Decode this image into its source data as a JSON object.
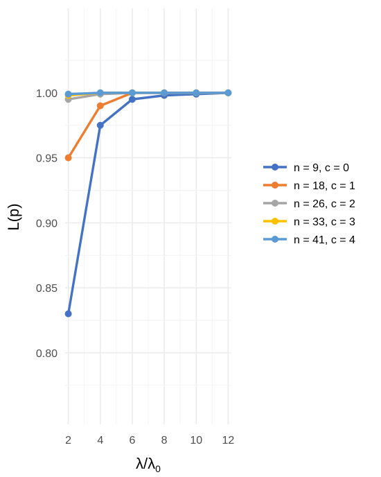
{
  "chart_data": {
    "type": "line",
    "xlabel": "λ/λ",
    "xlabel_sub": "0",
    "ylabel": "L(p)",
    "x": [
      2,
      4,
      6,
      8,
      10,
      12
    ],
    "xlim": [
      1.8,
      12.2
    ],
    "ylim": [
      0.745,
      1.065
    ],
    "xticks": [
      2,
      4,
      6,
      8,
      10,
      12
    ],
    "yticks": [
      0.8,
      0.85,
      0.9,
      0.95,
      1.0
    ],
    "ytick_labels": [
      "0.80",
      "0.85",
      "0.90",
      "0.95",
      "1.00"
    ],
    "grid": true,
    "legend_position": "right",
    "series": [
      {
        "name": "n = 9, c = 0",
        "color": "#4472C4",
        "values": [
          0.83,
          0.975,
          0.995,
          0.998,
          0.999,
          1.0
        ]
      },
      {
        "name": "n = 18, c = 1",
        "color": "#ED7D31",
        "values": [
          0.95,
          0.99,
          1.0,
          1.0,
          1.0,
          1.0
        ]
      },
      {
        "name": "n = 26, c = 2",
        "color": "#A5A5A5",
        "values": [
          0.995,
          0.999,
          1.0,
          1.0,
          1.0,
          1.0
        ]
      },
      {
        "name": "n = 33, c = 3",
        "color": "#FFC000",
        "values": [
          0.998,
          1.0,
          1.0,
          1.0,
          1.0,
          1.0
        ]
      },
      {
        "name": "n = 41, c = 4",
        "color": "#5B9BD5",
        "values": [
          0.999,
          1.0,
          1.0,
          1.0,
          1.0,
          1.0
        ]
      }
    ]
  }
}
